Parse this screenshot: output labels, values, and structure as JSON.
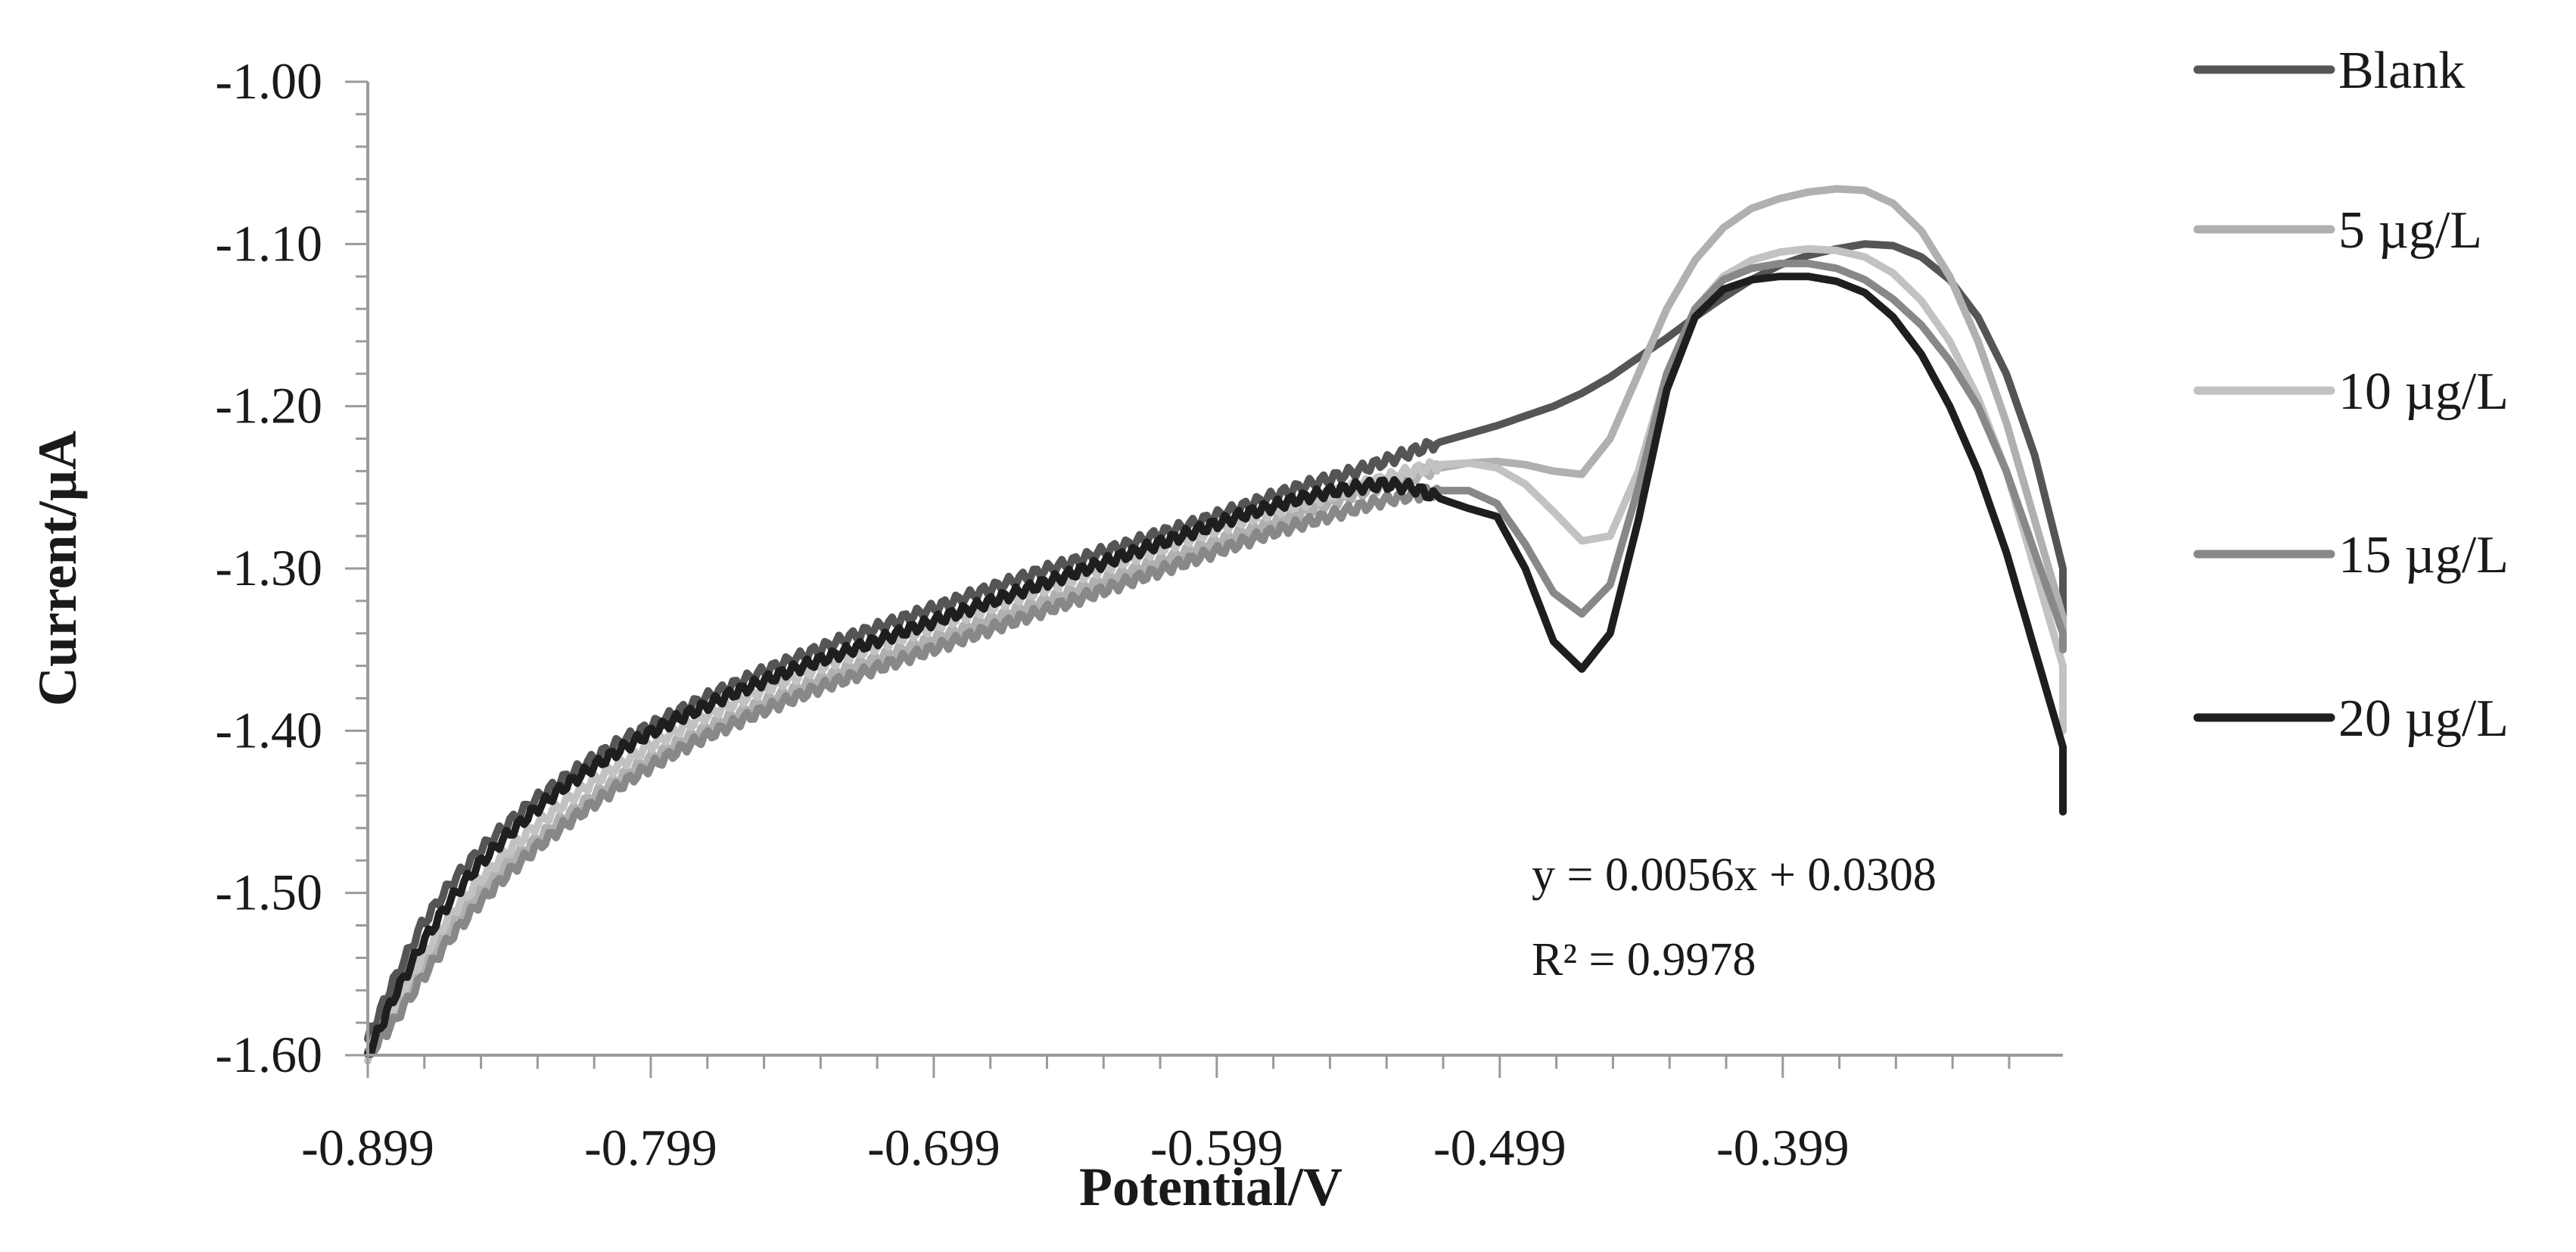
{
  "chart_data": {
    "type": "line",
    "xlabel": "Potential/V",
    "ylabel": "Current/µA",
    "xlim": [
      -0.899,
      -0.3
    ],
    "ylim": [
      -1.6,
      -1.0
    ],
    "x_tick_labels": [
      "-0.899",
      "-0.799",
      "-0.699",
      "-0.599",
      "-0.499",
      "-0.399"
    ],
    "y_tick_labels": [
      "-1.00",
      "-1.10",
      "-1.20",
      "-1.30",
      "-1.40",
      "-1.50",
      "-1.60"
    ],
    "grid": false,
    "legend_position": "right",
    "annotation": {
      "equation": "y = 0.0056x + 0.0308",
      "r_squared": "R² = 0.9978"
    },
    "series": [
      {
        "name": "Blank",
        "color": "#555555",
        "x": [
          -0.899,
          -0.89,
          -0.88,
          -0.87,
          -0.86,
          -0.85,
          -0.84,
          -0.83,
          -0.82,
          -0.81,
          -0.8,
          -0.79,
          -0.78,
          -0.77,
          -0.76,
          -0.75,
          -0.74,
          -0.73,
          -0.72,
          -0.71,
          -0.7,
          -0.69,
          -0.68,
          -0.67,
          -0.66,
          -0.65,
          -0.64,
          -0.63,
          -0.62,
          -0.61,
          -0.6,
          -0.59,
          -0.58,
          -0.57,
          -0.56,
          -0.55,
          -0.54,
          -0.53,
          -0.52,
          -0.51,
          -0.5,
          -0.49,
          -0.48,
          -0.47,
          -0.46,
          -0.45,
          -0.44,
          -0.43,
          -0.42,
          -0.41,
          -0.4,
          -0.39,
          -0.38,
          -0.37,
          -0.36,
          -0.35,
          -0.34,
          -0.33,
          -0.32,
          -0.31,
          -0.3,
          -0.3
        ],
        "y": [
          -1.59,
          -1.555,
          -1.52,
          -1.495,
          -1.475,
          -1.458,
          -1.443,
          -1.43,
          -1.418,
          -1.407,
          -1.398,
          -1.389,
          -1.38,
          -1.372,
          -1.364,
          -1.357,
          -1.35,
          -1.343,
          -1.337,
          -1.331,
          -1.325,
          -1.319,
          -1.313,
          -1.307,
          -1.301,
          -1.296,
          -1.29,
          -1.285,
          -1.279,
          -1.274,
          -1.268,
          -1.262,
          -1.256,
          -1.25,
          -1.245,
          -1.24,
          -1.234,
          -1.228,
          -1.222,
          -1.217,
          -1.212,
          -1.206,
          -1.2,
          -1.192,
          -1.182,
          -1.17,
          -1.158,
          -1.145,
          -1.133,
          -1.122,
          -1.113,
          -1.107,
          -1.103,
          -1.1,
          -1.101,
          -1.108,
          -1.122,
          -1.145,
          -1.18,
          -1.23,
          -1.3,
          -1.35
        ]
      },
      {
        "name": "5 µg/L",
        "color": "#b0b0b0",
        "x": [
          -0.899,
          -0.89,
          -0.88,
          -0.87,
          -0.86,
          -0.85,
          -0.84,
          -0.83,
          -0.82,
          -0.81,
          -0.8,
          -0.79,
          -0.78,
          -0.77,
          -0.76,
          -0.75,
          -0.74,
          -0.73,
          -0.72,
          -0.71,
          -0.7,
          -0.69,
          -0.68,
          -0.67,
          -0.66,
          -0.65,
          -0.64,
          -0.63,
          -0.62,
          -0.61,
          -0.6,
          -0.59,
          -0.58,
          -0.57,
          -0.56,
          -0.55,
          -0.54,
          -0.53,
          -0.52,
          -0.51,
          -0.5,
          -0.49,
          -0.48,
          -0.47,
          -0.46,
          -0.45,
          -0.44,
          -0.43,
          -0.42,
          -0.41,
          -0.4,
          -0.39,
          -0.38,
          -0.37,
          -0.36,
          -0.35,
          -0.34,
          -0.33,
          -0.32,
          -0.31,
          -0.3,
          -0.3
        ],
        "y": [
          -1.6,
          -1.575,
          -1.545,
          -1.52,
          -1.5,
          -1.483,
          -1.468,
          -1.454,
          -1.441,
          -1.429,
          -1.418,
          -1.408,
          -1.399,
          -1.391,
          -1.383,
          -1.376,
          -1.369,
          -1.362,
          -1.356,
          -1.35,
          -1.344,
          -1.338,
          -1.332,
          -1.326,
          -1.32,
          -1.314,
          -1.308,
          -1.302,
          -1.296,
          -1.29,
          -1.284,
          -1.278,
          -1.272,
          -1.266,
          -1.26,
          -1.254,
          -1.248,
          -1.243,
          -1.238,
          -1.235,
          -1.234,
          -1.236,
          -1.24,
          -1.242,
          -1.22,
          -1.18,
          -1.14,
          -1.11,
          -1.09,
          -1.078,
          -1.072,
          -1.068,
          -1.066,
          -1.067,
          -1.075,
          -1.092,
          -1.12,
          -1.16,
          -1.21,
          -1.27,
          -1.33,
          -1.35
        ]
      },
      {
        "name": "10 µg/L",
        "color": "#c2c2c2",
        "x": [
          -0.899,
          -0.89,
          -0.88,
          -0.87,
          -0.86,
          -0.85,
          -0.84,
          -0.83,
          -0.82,
          -0.81,
          -0.8,
          -0.79,
          -0.78,
          -0.77,
          -0.76,
          -0.75,
          -0.74,
          -0.73,
          -0.72,
          -0.71,
          -0.7,
          -0.69,
          -0.68,
          -0.67,
          -0.66,
          -0.65,
          -0.64,
          -0.63,
          -0.62,
          -0.61,
          -0.6,
          -0.59,
          -0.58,
          -0.57,
          -0.56,
          -0.55,
          -0.54,
          -0.53,
          -0.52,
          -0.51,
          -0.5,
          -0.49,
          -0.48,
          -0.47,
          -0.46,
          -0.45,
          -0.44,
          -0.43,
          -0.42,
          -0.41,
          -0.4,
          -0.39,
          -0.38,
          -0.37,
          -0.36,
          -0.35,
          -0.34,
          -0.33,
          -0.32,
          -0.31,
          -0.3,
          -0.3
        ],
        "y": [
          -1.6,
          -1.57,
          -1.54,
          -1.514,
          -1.493,
          -1.475,
          -1.459,
          -1.445,
          -1.432,
          -1.421,
          -1.41,
          -1.4,
          -1.391,
          -1.383,
          -1.375,
          -1.368,
          -1.361,
          -1.354,
          -1.348,
          -1.342,
          -1.336,
          -1.33,
          -1.324,
          -1.318,
          -1.312,
          -1.306,
          -1.3,
          -1.294,
          -1.288,
          -1.282,
          -1.276,
          -1.27,
          -1.265,
          -1.26,
          -1.255,
          -1.25,
          -1.245,
          -1.24,
          -1.236,
          -1.235,
          -1.238,
          -1.248,
          -1.265,
          -1.283,
          -1.28,
          -1.24,
          -1.18,
          -1.14,
          -1.12,
          -1.11,
          -1.105,
          -1.103,
          -1.104,
          -1.108,
          -1.118,
          -1.135,
          -1.16,
          -1.195,
          -1.24,
          -1.3,
          -1.36,
          -1.4
        ]
      },
      {
        "name": "15 µg/L",
        "color": "#888888",
        "x": [
          -0.899,
          -0.89,
          -0.88,
          -0.87,
          -0.86,
          -0.85,
          -0.84,
          -0.83,
          -0.82,
          -0.81,
          -0.8,
          -0.79,
          -0.78,
          -0.77,
          -0.76,
          -0.75,
          -0.74,
          -0.73,
          -0.72,
          -0.71,
          -0.7,
          -0.69,
          -0.68,
          -0.67,
          -0.66,
          -0.65,
          -0.64,
          -0.63,
          -0.62,
          -0.61,
          -0.6,
          -0.59,
          -0.58,
          -0.57,
          -0.56,
          -0.55,
          -0.54,
          -0.53,
          -0.52,
          -0.51,
          -0.5,
          -0.49,
          -0.48,
          -0.47,
          -0.46,
          -0.45,
          -0.44,
          -0.43,
          -0.42,
          -0.41,
          -0.4,
          -0.39,
          -0.38,
          -0.37,
          -0.36,
          -0.35,
          -0.34,
          -0.33,
          -0.32,
          -0.31,
          -0.3,
          -0.3
        ],
        "y": [
          -1.6,
          -1.58,
          -1.553,
          -1.528,
          -1.507,
          -1.489,
          -1.473,
          -1.459,
          -1.446,
          -1.434,
          -1.423,
          -1.413,
          -1.404,
          -1.396,
          -1.388,
          -1.381,
          -1.374,
          -1.368,
          -1.362,
          -1.356,
          -1.35,
          -1.344,
          -1.338,
          -1.332,
          -1.326,
          -1.32,
          -1.314,
          -1.308,
          -1.302,
          -1.296,
          -1.29,
          -1.284,
          -1.278,
          -1.273,
          -1.268,
          -1.263,
          -1.258,
          -1.255,
          -1.252,
          -1.252,
          -1.26,
          -1.285,
          -1.315,
          -1.328,
          -1.31,
          -1.25,
          -1.18,
          -1.14,
          -1.122,
          -1.115,
          -1.112,
          -1.112,
          -1.115,
          -1.122,
          -1.134,
          -1.15,
          -1.172,
          -1.2,
          -1.24,
          -1.29,
          -1.34,
          -1.35
        ]
      },
      {
        "name": "20 µg/L",
        "color": "#1e1e1e",
        "x": [
          -0.899,
          -0.89,
          -0.88,
          -0.87,
          -0.86,
          -0.85,
          -0.84,
          -0.83,
          -0.82,
          -0.81,
          -0.8,
          -0.79,
          -0.78,
          -0.77,
          -0.76,
          -0.75,
          -0.74,
          -0.73,
          -0.72,
          -0.71,
          -0.7,
          -0.69,
          -0.68,
          -0.67,
          -0.66,
          -0.65,
          -0.64,
          -0.63,
          -0.62,
          -0.61,
          -0.6,
          -0.59,
          -0.58,
          -0.57,
          -0.56,
          -0.55,
          -0.54,
          -0.53,
          -0.52,
          -0.51,
          -0.5,
          -0.49,
          -0.48,
          -0.47,
          -0.46,
          -0.45,
          -0.44,
          -0.43,
          -0.42,
          -0.41,
          -0.4,
          -0.39,
          -0.38,
          -0.37,
          -0.36,
          -0.35,
          -0.34,
          -0.33,
          -0.32,
          -0.31,
          -0.3,
          -0.3
        ],
        "y": [
          -1.6,
          -1.565,
          -1.532,
          -1.505,
          -1.483,
          -1.465,
          -1.449,
          -1.435,
          -1.423,
          -1.412,
          -1.402,
          -1.393,
          -1.385,
          -1.377,
          -1.37,
          -1.363,
          -1.357,
          -1.351,
          -1.345,
          -1.339,
          -1.333,
          -1.327,
          -1.321,
          -1.315,
          -1.309,
          -1.303,
          -1.297,
          -1.291,
          -1.285,
          -1.279,
          -1.273,
          -1.267,
          -1.262,
          -1.257,
          -1.253,
          -1.25,
          -1.248,
          -1.25,
          -1.257,
          -1.263,
          -1.268,
          -1.3,
          -1.345,
          -1.362,
          -1.34,
          -1.27,
          -1.19,
          -1.145,
          -1.128,
          -1.122,
          -1.12,
          -1.12,
          -1.123,
          -1.13,
          -1.145,
          -1.168,
          -1.2,
          -1.24,
          -1.29,
          -1.35,
          -1.41,
          -1.45
        ]
      }
    ]
  }
}
